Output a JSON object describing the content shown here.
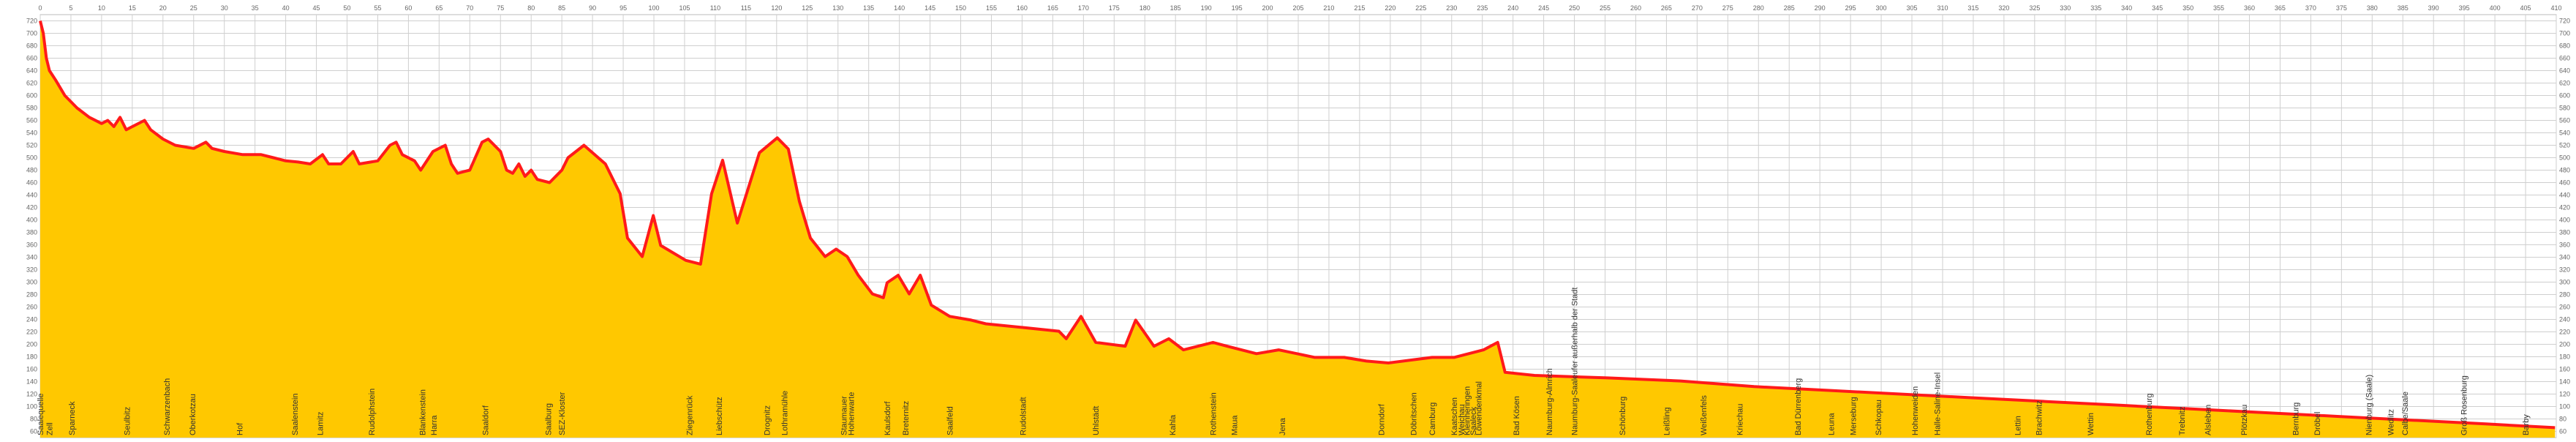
{
  "chart_data": {
    "type": "area",
    "x": [
      0,
      0.5,
      1,
      1.5,
      2.5,
      4,
      6,
      8,
      10,
      11,
      12,
      13,
      14,
      15,
      17,
      18,
      20,
      22,
      25,
      27,
      28,
      30,
      33,
      36,
      38,
      40,
      42,
      44,
      46,
      47,
      49,
      51,
      52,
      55,
      57,
      58,
      59,
      61,
      62,
      64,
      66,
      67,
      68,
      70,
      72,
      73,
      75,
      76,
      77,
      78,
      79,
      80,
      81,
      83,
      85,
      86,
      88.6,
      92.1,
      94.5,
      95.7,
      98.1,
      99.9,
      101.1,
      105.2,
      107.6,
      109.4,
      111.2,
      113.6,
      117.2,
      120.1,
      121.9,
      123.7,
      125.5,
      127.9,
      129.7,
      131.5,
      133.3,
      135.6,
      137.4,
      138,
      139.8,
      141.6,
      143.4,
      145.2,
      148.2,
      151.7,
      154.1,
      160.1,
      166,
      167.2,
      169.6,
      172,
      176.8,
      178.5,
      181.5,
      183.9,
      186.3,
      191.1,
      193.4,
      198.2,
      201.8,
      207.7,
      212.5,
      216.1,
      219.7,
      226.8,
      230.4,
      235.2,
      237.5,
      238.7,
      243.5,
      255.4,
      267.3,
      279.3,
      291.2,
      303.1,
      315,
      326.9,
      338.9,
      350.8,
      362.7,
      374.6,
      386.5,
      398.5,
      409.8
    ],
    "values": [
      720,
      700,
      660,
      640,
      625,
      600,
      580,
      565,
      555,
      560,
      550,
      565,
      545,
      550,
      560,
      545,
      530,
      520,
      515,
      525,
      515,
      510,
      505,
      505,
      500,
      495,
      493,
      490,
      505,
      490,
      490,
      510,
      490,
      495,
      520,
      525,
      505,
      495,
      480,
      510,
      520,
      490,
      475,
      480,
      525,
      530,
      510,
      480,
      475,
      490,
      470,
      480,
      465,
      460,
      480,
      500,
      520,
      490,
      442,
      371,
      341,
      407,
      359,
      335,
      329,
      442,
      496,
      395,
      508,
      532,
      514,
      430,
      371,
      341,
      353,
      341,
      311,
      281,
      275,
      299,
      311,
      281,
      311,
      263,
      245,
      239,
      233,
      227,
      221,
      209,
      245,
      203,
      197,
      239,
      197,
      209,
      191,
      203,
      197,
      185,
      191,
      179,
      179,
      173,
      170,
      179,
      179,
      191,
      203,
      155,
      150,
      146,
      141,
      132,
      126,
      120,
      114,
      108,
      102,
      96,
      90,
      84,
      78,
      72,
      66
    ],
    "fill_color": "#ffc800",
    "line_color": "#ff1a1a",
    "xlim": [
      0,
      410
    ],
    "xticks": [
      0,
      5,
      10,
      15,
      20,
      25,
      30,
      35,
      40,
      45,
      50,
      55,
      60,
      65,
      70,
      75,
      80,
      85,
      90,
      95,
      100,
      105,
      110,
      115,
      120,
      125,
      130,
      135,
      140,
      145,
      150,
      155,
      160,
      165,
      170,
      175,
      180,
      185,
      190,
      195,
      200,
      205,
      210,
      215,
      220,
      225,
      230,
      235,
      240,
      245,
      250,
      255,
      260,
      265,
      270,
      275,
      280,
      285,
      290,
      295,
      300,
      305,
      310,
      315,
      320,
      325,
      330,
      335,
      340,
      345,
      350,
      355,
      360,
      365,
      370,
      375,
      380,
      385,
      390,
      395,
      400,
      405,
      410
    ],
    "ylim": [
      50,
      730
    ],
    "yticks": [
      60,
      80,
      100,
      120,
      140,
      160,
      180,
      200,
      220,
      240,
      260,
      280,
      300,
      320,
      340,
      360,
      380,
      400,
      420,
      440,
      460,
      480,
      500,
      520,
      540,
      560,
      580,
      600,
      620,
      640,
      660,
      680,
      700,
      720
    ],
    "grid": true,
    "places": [
      {
        "label": "Saalequelle",
        "x": 0
      },
      {
        "label": "Zell",
        "x": 1.5
      },
      {
        "label": "Sparneck",
        "x": 5.1
      },
      {
        "label": "Seulbitz",
        "x": 14.1
      },
      {
        "label": "Schwarzenbach",
        "x": 20.6
      },
      {
        "label": "Oberkotzau",
        "x": 24.8
      },
      {
        "label": "Hof",
        "x": 32.5
      },
      {
        "label": "Saalenstein",
        "x": 41.5
      },
      {
        "label": "Lamitz",
        "x": 45.6
      },
      {
        "label": "Rudolphstein",
        "x": 54
      },
      {
        "label": "Blankenstein",
        "x": 62.3
      },
      {
        "label": "Harra",
        "x": 64.1
      },
      {
        "label": "Saaldorf",
        "x": 72.5
      },
      {
        "label": "Saalburg",
        "x": 82.8
      },
      {
        "label": "SEZ-Kloster",
        "x": 85
      },
      {
        "label": "Ziegenrück",
        "x": 105.8
      },
      {
        "label": "Liebschütz",
        "x": 110.6
      },
      {
        "label": "Drognitz",
        "x": 118.4
      },
      {
        "label": "Lothramühle",
        "x": 121.3
      },
      {
        "label": "Staumauer",
        "x": 130.9
      },
      {
        "label": "Hohenwarte",
        "x": 132.1
      },
      {
        "label": "Kaulsdorf",
        "x": 138
      },
      {
        "label": "Breternitz",
        "x": 141
      },
      {
        "label": "Saalfeld",
        "x": 148.2
      },
      {
        "label": "Rudolstadt",
        "x": 160.1
      },
      {
        "label": "Uhlstädt",
        "x": 172
      },
      {
        "label": "Kahla",
        "x": 184.5
      },
      {
        "label": "Rothenstein",
        "x": 191.1
      },
      {
        "label": "Maua",
        "x": 194.6
      },
      {
        "label": "Jena",
        "x": 202.4
      },
      {
        "label": "Dorndorf",
        "x": 218.5
      },
      {
        "label": "Döbritschen",
        "x": 223.8
      },
      {
        "label": "Camburg",
        "x": 226.8
      },
      {
        "label": "Kaatschen",
        "x": 230.4
      },
      {
        "label": "Weichau",
        "x": 231.6
      },
      {
        "label": "Kleinheringen",
        "x": 232.5
      },
      {
        "label": "Saaleck",
        "x": 233.5
      },
      {
        "label": "Löwendenkmal",
        "x": 234.4
      },
      {
        "label": "Bad Kösen",
        "x": 240.5
      },
      {
        "label": "Naumburg-Almrich",
        "x": 245.9
      },
      {
        "label": "Naumburg-Saaleufer außerhalb der Stadt",
        "x": 250
      },
      {
        "label": "Schönburg",
        "x": 257.8
      },
      {
        "label": "Leißling",
        "x": 265
      },
      {
        "label": "Weißenfels",
        "x": 271
      },
      {
        "label": "Kriechau",
        "x": 276.9
      },
      {
        "label": "Bad Dürrenberg",
        "x": 286.4
      },
      {
        "label": "Leuna",
        "x": 291.8
      },
      {
        "label": "Merseburg",
        "x": 295.4
      },
      {
        "label": "Schkopau",
        "x": 299.5
      },
      {
        "label": "Hohenweiden",
        "x": 305.5
      },
      {
        "label": "Halle-Saline-Insel",
        "x": 309.1
      },
      {
        "label": "Lettin",
        "x": 322.2
      },
      {
        "label": "Brachwitz",
        "x": 325.7
      },
      {
        "label": "Wettin",
        "x": 334.1
      },
      {
        "label": "Rothenburg",
        "x": 343.6
      },
      {
        "label": "Trebnitz",
        "x": 349
      },
      {
        "label": "Alsleben",
        "x": 353.2
      },
      {
        "label": "Plötzkau",
        "x": 359.1
      },
      {
        "label": "Bernburg",
        "x": 367.5
      },
      {
        "label": "Dröbel",
        "x": 371
      },
      {
        "label": "Nienburg (Saale)",
        "x": 379.4
      },
      {
        "label": "Wedlitz",
        "x": 383
      },
      {
        "label": "Calbe/Saale",
        "x": 385.3
      },
      {
        "label": "Groß Rosenburg",
        "x": 394.9
      },
      {
        "label": "Barby",
        "x": 405
      }
    ]
  }
}
